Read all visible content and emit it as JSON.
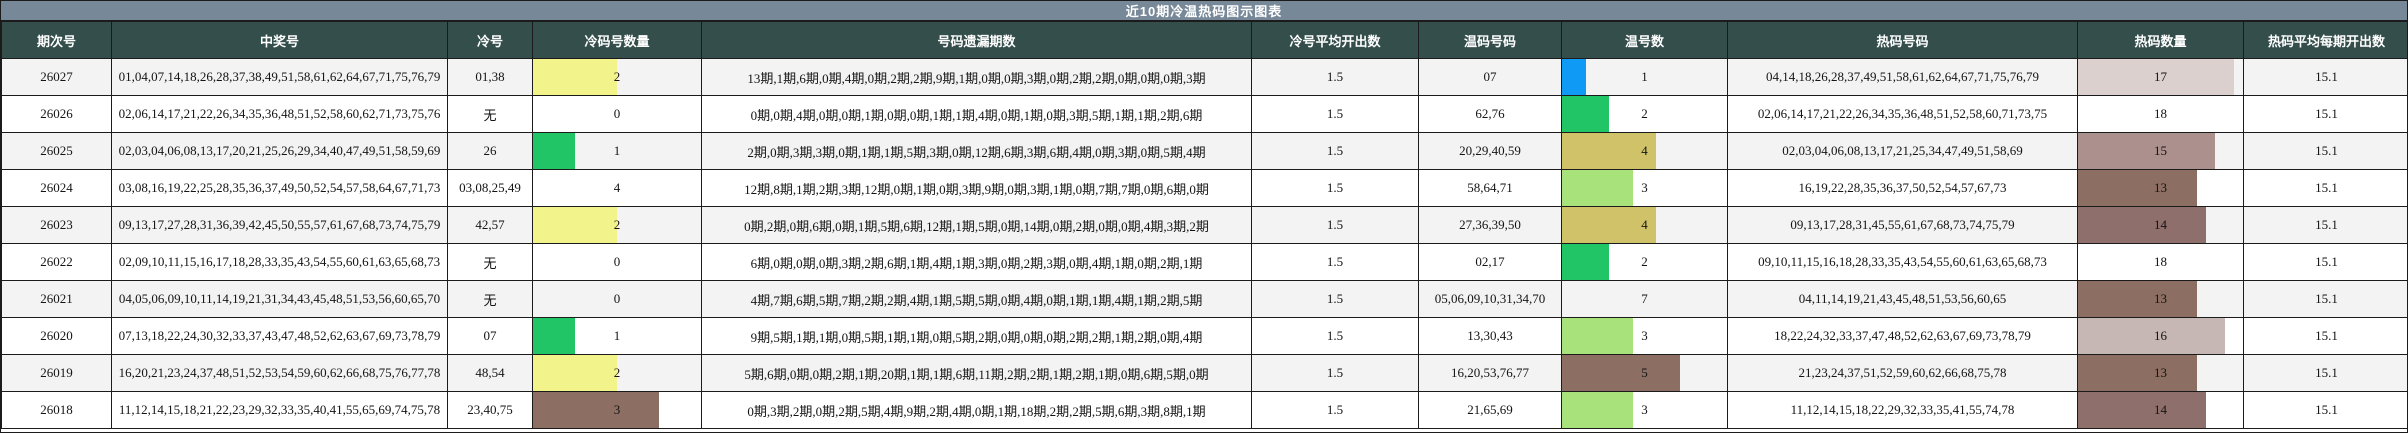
{
  "title": "近10期冷温热码图示图表",
  "colors": {
    "title_bar_bg": "#778899",
    "header_bg": "#334e4b",
    "row_alt_bg": "#f3f3f3",
    "border": "#1b1b1b",
    "bar_yellow": "#f3f38b",
    "bar_green": "#22c565",
    "bar_light_green": "#a8e27a",
    "bar_khaki": "#cfc268",
    "bar_brown": "#8d6e63",
    "bar_blue": "#0f9af5",
    "bar_rosy": "#ab908e",
    "bar_pink_light": "#c6b7b5",
    "bar_pink_lighter": "#dcd0ce"
  },
  "table": {
    "headers": [
      "期次号",
      "中奖号",
      "冷号",
      "冷码号数量",
      "号码遗漏期数",
      "冷号平均开出数",
      "温码号码",
      "温号数",
      "热码号码",
      "热码数量",
      "热码平均每期开出数"
    ],
    "bar_scales": {
      "cold_max": 4,
      "warm_max": 7,
      "hot_max": 18
    },
    "rows": [
      {
        "period": "26027",
        "winning": "01,04,07,14,18,26,28,37,38,49,51,58,61,62,64,67,71,75,76,79",
        "cold": "01,38",
        "cold_count": "2",
        "cold_bar": "#f3f38b",
        "miss": "13期,1期,6期,0期,4期,0期,2期,2期,9期,1期,0期,0期,3期,0期,2期,2期,0期,0期,0期,3期",
        "cold_avg": "1.5",
        "warm": "07",
        "warm_count": "1",
        "warm_bar": "#0f9af5",
        "hot": "04,14,18,26,28,37,49,51,58,61,62,64,67,71,75,76,79",
        "hot_count": "17",
        "hot_bar": "#dcd0ce",
        "hot_avg": "15.1"
      },
      {
        "period": "26026",
        "winning": "02,06,14,17,21,22,26,34,35,36,48,51,52,58,60,62,71,73,75,76",
        "cold": "无",
        "cold_count": "0",
        "cold_bar": "",
        "miss": "0期,0期,4期,0期,0期,1期,0期,0期,1期,1期,4期,0期,1期,0期,3期,5期,1期,1期,2期,6期",
        "cold_avg": "1.5",
        "warm": "62,76",
        "warm_count": "2",
        "warm_bar": "#22c565",
        "hot": "02,06,14,17,21,22,26,34,35,36,48,51,52,58,60,71,73,75",
        "hot_count": "18",
        "hot_bar": "",
        "hot_avg": "15.1"
      },
      {
        "period": "26025",
        "winning": "02,03,04,06,08,13,17,20,21,25,26,29,34,40,47,49,51,58,59,69",
        "cold": "26",
        "cold_count": "1",
        "cold_bar": "#22c565",
        "miss": "2期,0期,3期,3期,0期,1期,1期,5期,3期,0期,12期,6期,3期,6期,4期,0期,3期,0期,5期,4期",
        "cold_avg": "1.5",
        "warm": "20,29,40,59",
        "warm_count": "4",
        "warm_bar": "#cfc268",
        "hot": "02,03,04,06,08,13,17,21,25,34,47,49,51,58,69",
        "hot_count": "15",
        "hot_bar": "#ab908e",
        "hot_avg": "15.1"
      },
      {
        "period": "26024",
        "winning": "03,08,16,19,22,25,28,35,36,37,49,50,52,54,57,58,64,67,71,73",
        "cold": "03,08,25,49",
        "cold_count": "4",
        "cold_bar": "",
        "miss": "12期,8期,1期,2期,3期,12期,0期,1期,0期,3期,9期,0期,3期,1期,0期,7期,7期,0期,6期,0期",
        "cold_avg": "1.5",
        "warm": "58,64,71",
        "warm_count": "3",
        "warm_bar": "#a8e27a",
        "hot": "16,19,22,28,35,36,37,50,52,54,57,67,73",
        "hot_count": "13",
        "hot_bar": "#8d6e63",
        "hot_avg": "15.1"
      },
      {
        "period": "26023",
        "winning": "09,13,17,27,28,31,36,39,42,45,50,55,57,61,67,68,73,74,75,79",
        "cold": "42,57",
        "cold_count": "2",
        "cold_bar": "#f3f38b",
        "miss": "0期,2期,0期,6期,0期,1期,5期,6期,12期,1期,5期,0期,14期,0期,2期,0期,0期,4期,3期,2期",
        "cold_avg": "1.5",
        "warm": "27,36,39,50",
        "warm_count": "4",
        "warm_bar": "#cfc268",
        "hot": "09,13,17,28,31,45,55,61,67,68,73,74,75,79",
        "hot_count": "14",
        "hot_bar": "#8f6f6b",
        "hot_avg": "15.1"
      },
      {
        "period": "26022",
        "winning": "02,09,10,11,15,16,17,18,28,33,35,43,54,55,60,61,63,65,68,73",
        "cold": "无",
        "cold_count": "0",
        "cold_bar": "",
        "miss": "6期,0期,0期,0期,3期,2期,6期,1期,4期,1期,3期,0期,2期,3期,0期,4期,1期,0期,2期,1期",
        "cold_avg": "1.5",
        "warm": "02,17",
        "warm_count": "2",
        "warm_bar": "#22c565",
        "hot": "09,10,11,15,16,18,28,33,35,43,54,55,60,61,63,65,68,73",
        "hot_count": "18",
        "hot_bar": "",
        "hot_avg": "15.1"
      },
      {
        "period": "26021",
        "winning": "04,05,06,09,10,11,14,19,21,31,34,43,45,48,51,53,56,60,65,70",
        "cold": "无",
        "cold_count": "0",
        "cold_bar": "",
        "miss": "4期,7期,6期,5期,7期,2期,2期,4期,1期,5期,5期,0期,4期,0期,1期,1期,4期,1期,2期,5期",
        "cold_avg": "1.5",
        "warm": "05,06,09,10,31,34,70",
        "warm_count": "7",
        "warm_bar": "",
        "hot": "04,11,14,19,21,43,45,48,51,53,56,60,65",
        "hot_count": "13",
        "hot_bar": "#8d6e63",
        "hot_avg": "15.1"
      },
      {
        "period": "26020",
        "winning": "07,13,18,22,24,30,32,33,37,43,47,48,52,62,63,67,69,73,78,79",
        "cold": "07",
        "cold_count": "1",
        "cold_bar": "#22c565",
        "miss": "9期,5期,1期,1期,0期,5期,1期,1期,0期,5期,2期,0期,0期,0期,2期,2期,1期,2期,0期,4期",
        "cold_avg": "1.5",
        "warm": "13,30,43",
        "warm_count": "3",
        "warm_bar": "#a8e27a",
        "hot": "18,22,24,32,33,37,47,48,52,62,63,67,69,73,78,79",
        "hot_count": "16",
        "hot_bar": "#c6b7b5",
        "hot_avg": "15.1"
      },
      {
        "period": "26019",
        "winning": "16,20,21,23,24,37,48,51,52,53,54,59,60,62,66,68,75,76,77,78",
        "cold": "48,54",
        "cold_count": "2",
        "cold_bar": "#f3f38b",
        "miss": "5期,6期,0期,0期,2期,1期,20期,1期,1期,6期,11期,2期,2期,1期,2期,1期,0期,6期,5期,0期",
        "cold_avg": "1.5",
        "warm": "16,20,53,76,77",
        "warm_count": "5",
        "warm_bar": "#8d6e63",
        "hot": "21,23,24,37,51,52,59,60,62,66,68,75,78",
        "hot_count": "13",
        "hot_bar": "#8d6e63",
        "hot_avg": "15.1"
      },
      {
        "period": "26018",
        "winning": "11,12,14,15,18,21,22,23,29,32,33,35,40,41,55,65,69,74,75,78",
        "cold": "23,40,75",
        "cold_count": "3",
        "cold_bar": "#8d6e63",
        "miss": "0期,3期,2期,0期,2期,5期,4期,9期,2期,4期,0期,1期,18期,2期,2期,5期,6期,3期,8期,1期",
        "cold_avg": "1.5",
        "warm": "21,65,69",
        "warm_count": "3",
        "warm_bar": "#a8e27a",
        "hot": "11,12,14,15,18,22,29,32,33,35,41,55,74,78",
        "hot_count": "14",
        "hot_bar": "#8f6f6b",
        "hot_avg": "15.1"
      }
    ]
  }
}
